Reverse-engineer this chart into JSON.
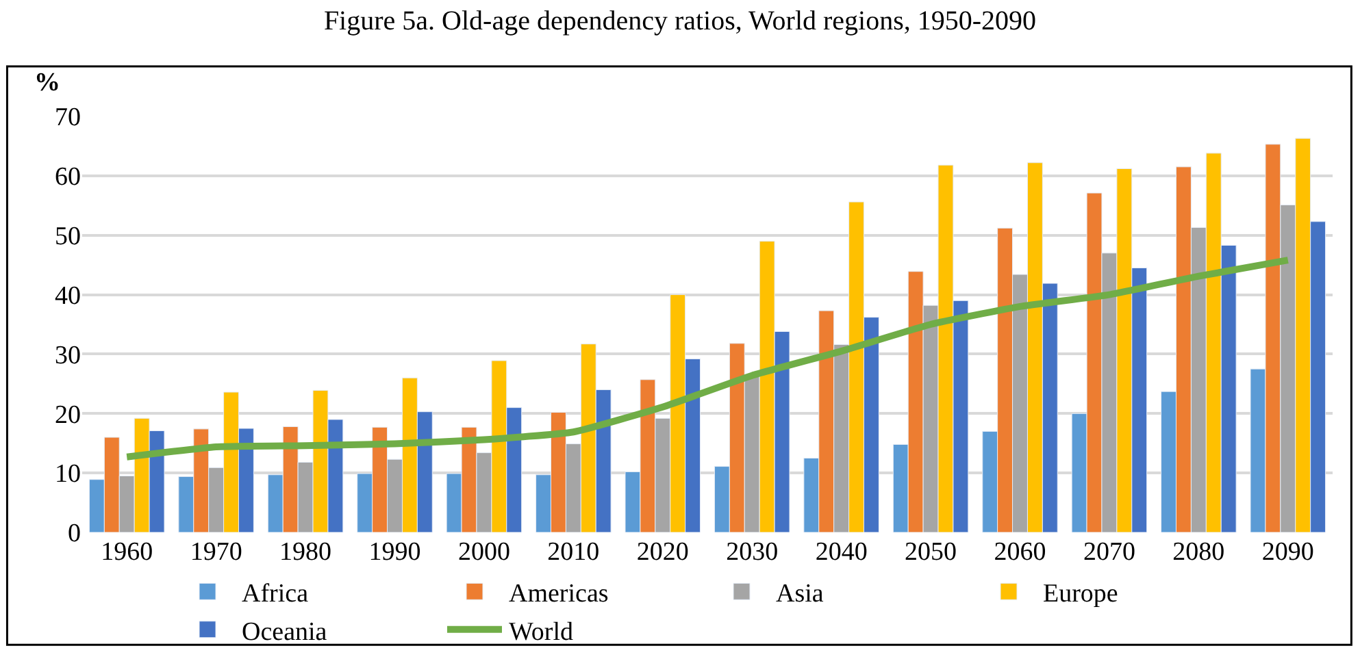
{
  "chart_data": {
    "type": "bar",
    "title": "Figure 5a. Old-age dependency ratios, World regions, 1950-2090",
    "ylabel": "%",
    "categories": [
      "1960",
      "1970",
      "1980",
      "1990",
      "2000",
      "2010",
      "2020",
      "2030",
      "2040",
      "2050",
      "2060",
      "2070",
      "2080",
      "2090"
    ],
    "series": [
      {
        "name": "Africa",
        "color": "#5b9bd5",
        "values": [
          8.9,
          9.4,
          9.7,
          9.9,
          9.9,
          9.7,
          10.2,
          11.1,
          12.5,
          14.8,
          17.0,
          20.0,
          23.7,
          27.5
        ]
      },
      {
        "name": "Americas",
        "color": "#ed7d31",
        "values": [
          16.0,
          17.4,
          17.8,
          17.7,
          17.7,
          20.2,
          25.7,
          31.8,
          37.3,
          43.9,
          51.2,
          57.1,
          61.5,
          65.3
        ]
      },
      {
        "name": "Asia",
        "color": "#a5a5a5",
        "values": [
          9.5,
          10.9,
          11.8,
          12.3,
          13.4,
          14.9,
          19.2,
          26.5,
          31.6,
          38.2,
          43.4,
          47.0,
          51.3,
          55.1
        ]
      },
      {
        "name": "Europe",
        "color": "#ffc000",
        "values": [
          19.2,
          23.6,
          23.9,
          26.0,
          28.9,
          31.7,
          40.0,
          49.0,
          55.6,
          61.8,
          62.2,
          61.2,
          63.8,
          66.3
        ]
      },
      {
        "name": "Oceania",
        "color": "#4472c4",
        "values": [
          17.1,
          17.5,
          19.0,
          20.3,
          21.0,
          24.0,
          29.2,
          33.8,
          36.2,
          39.0,
          41.9,
          44.5,
          48.3,
          52.3
        ]
      },
      {
        "name": "World",
        "type": "line",
        "color": "#70ad47",
        "values": [
          12.7,
          14.4,
          14.6,
          14.9,
          15.6,
          16.9,
          21.1,
          26.4,
          30.5,
          35.0,
          38.0,
          40.0,
          43.1,
          45.8
        ]
      }
    ],
    "ylim": [
      0,
      70
    ],
    "yticks": [
      0,
      10,
      20,
      30,
      40,
      50,
      60,
      70
    ],
    "grid": "y",
    "legend": "bottom",
    "marker": "none"
  }
}
